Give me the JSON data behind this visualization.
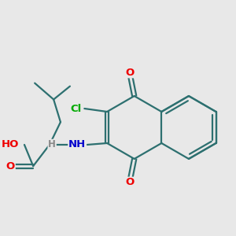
{
  "bg": "#e8e8e8",
  "ring_color": "#2d7070",
  "bond_lw": 1.6,
  "atom_colors": {
    "O": "#ee0000",
    "N": "#0000cc",
    "Cl": "#00aa00",
    "H": "#888888",
    "C": "#2d7070"
  },
  "fs": 9.5,
  "fs_small": 8.5,
  "dbl_off": 0.055
}
